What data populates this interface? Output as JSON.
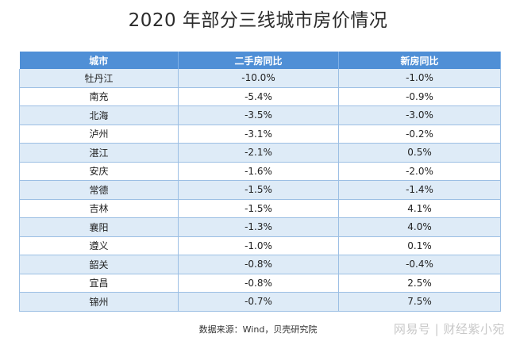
{
  "title": "2020 年部分三线城市房价情况",
  "table": {
    "headers": [
      "城市",
      "二手房同比",
      "新房同比"
    ],
    "rows": [
      [
        "牡丹江",
        "-10.0%",
        "-1.0%"
      ],
      [
        "南充",
        "-5.4%",
        "-0.9%"
      ],
      [
        "北海",
        "-3.5%",
        "-3.0%"
      ],
      [
        "泸州",
        "-3.1%",
        "-0.2%"
      ],
      [
        "湛江",
        "-2.1%",
        "0.5%"
      ],
      [
        "安庆",
        "-1.6%",
        "-2.0%"
      ],
      [
        "常德",
        "-1.5%",
        "-1.4%"
      ],
      [
        "吉林",
        "-1.5%",
        "4.1%"
      ],
      [
        "襄阳",
        "-1.3%",
        "4.0%"
      ],
      [
        "遵义",
        "-1.0%",
        "0.1%"
      ],
      [
        "韶关",
        "-0.8%",
        "-0.4%"
      ],
      [
        "宜昌",
        "-0.8%",
        "2.5%"
      ],
      [
        "锦州",
        "-0.7%",
        "7.5%"
      ]
    ]
  },
  "source": "数据来源：Wind，贝壳研究院",
  "watermark": "网易号 | 财经紫小宛",
  "colors": {
    "header_bg": "#4f8fd6",
    "alt_row_bg": "#deebf7",
    "border": "#9cbfe4"
  }
}
